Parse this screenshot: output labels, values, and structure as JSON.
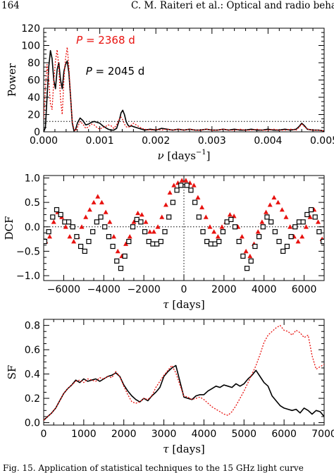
{
  "header": {
    "page_number": "164",
    "running_title": "C. M. Raiteri et al.: Optical and radio beha"
  },
  "caption": {
    "text": "Fig. 15. Application of statistical techniques to the 15 GHz light curve"
  },
  "colors": {
    "black_series": "#000000",
    "red_series": "#e8120f",
    "axis": "#000000"
  },
  "chart_data": [
    {
      "type": "line",
      "ylabel": "Power",
      "xlabel_symbol": "ν",
      "xlabel_unit": "[days",
      "xlabel_exp": "−1",
      "xlabel_close": "]",
      "xlim": [
        0,
        0.005
      ],
      "ylim": [
        0,
        120
      ],
      "xticks": [
        0,
        0.001,
        0.002,
        0.003,
        0.004,
        0.005
      ],
      "xtick_labels": [
        "0.000",
        "0.001",
        "0.002",
        "0.003",
        "0.004",
        "0.005"
      ],
      "yticks": [
        0,
        20,
        40,
        60,
        80,
        100,
        120
      ],
      "ytick_labels": [
        "0",
        "20",
        "40",
        "60",
        "80",
        "100",
        "120"
      ],
      "threshold": 12,
      "annotations": [
        {
          "symbol": "P",
          "text": " = 2368 d",
          "color": "red",
          "at": [
            0.00058,
            102
          ]
        },
        {
          "symbol": "P",
          "text": " = 2045 d",
          "color": "black",
          "at": [
            0.00075,
            66
          ]
        }
      ],
      "series": [
        {
          "style": "solid",
          "color": "black",
          "x": [
            0,
            3e-05,
            6e-05,
            9e-05,
            0.00012,
            0.00015,
            0.00018,
            0.00021,
            0.00024,
            0.00027,
            0.0003,
            0.00033,
            0.00036,
            0.00039,
            0.00042,
            0.00045,
            0.00048,
            0.00051,
            0.00054,
            0.00057,
            0.0006,
            0.00065,
            0.0007,
            0.00075,
            0.0008,
            0.00085,
            0.0009,
            0.00095,
            0.001,
            0.00105,
            0.0011,
            0.00115,
            0.0012,
            0.00125,
            0.0013,
            0.00135,
            0.00138,
            0.00141,
            0.00144,
            0.00147,
            0.0015,
            0.00153,
            0.00156,
            0.0016,
            0.00165,
            0.0017,
            0.00175,
            0.0018,
            0.0019,
            0.002,
            0.0021,
            0.0022,
            0.0023,
            0.0024,
            0.0025,
            0.0026,
            0.0027,
            0.0028,
            0.0029,
            0.003,
            0.0031,
            0.0032,
            0.0033,
            0.0034,
            0.0035,
            0.0036,
            0.0037,
            0.0038,
            0.0039,
            0.004,
            0.0041,
            0.0042,
            0.0043,
            0.0044,
            0.0045,
            0.00455,
            0.0046,
            0.00465,
            0.0047,
            0.0048,
            0.0049,
            0.005
          ],
          "y": [
            0,
            5,
            40,
            75,
            94,
            85,
            60,
            50,
            72,
            80,
            60,
            50,
            70,
            78,
            82,
            68,
            40,
            10,
            1,
            3,
            10,
            16,
            13,
            8,
            9,
            11,
            12,
            11,
            10,
            7,
            5,
            3,
            2,
            2,
            4,
            14,
            22,
            25,
            20,
            12,
            8,
            6,
            7,
            6,
            5,
            4,
            3,
            2,
            3,
            2,
            4,
            3,
            2,
            3,
            2,
            3,
            2,
            2,
            3,
            2,
            2,
            3,
            2,
            3,
            2,
            2,
            3,
            2,
            2,
            3,
            2,
            2,
            3,
            2,
            3,
            6,
            10,
            7,
            3,
            2,
            2,
            1
          ]
        },
        {
          "style": "dotted",
          "color": "red",
          "x": [
            0,
            3e-05,
            6e-05,
            9e-05,
            0.00012,
            0.00015,
            0.00018,
            0.00021,
            0.00024,
            0.00027,
            0.0003,
            0.00033,
            0.00036,
            0.00039,
            0.00042,
            0.00045,
            0.00048,
            0.00051,
            0.00054,
            0.00057,
            0.0006,
            0.00065,
            0.0007,
            0.00075,
            0.0008,
            0.00085,
            0.0009,
            0.00095,
            0.001,
            0.00105,
            0.0011,
            0.00115,
            0.0012,
            0.00125,
            0.0013,
            0.00135,
            0.00138,
            0.00141,
            0.00144,
            0.00147,
            0.0015,
            0.00155,
            0.0016,
            0.00165,
            0.0017,
            0.00175,
            0.0018,
            0.0019,
            0.002,
            0.0021,
            0.0022,
            0.0023,
            0.0024,
            0.0025,
            0.0026,
            0.0027,
            0.0028,
            0.0029,
            0.003,
            0.0031,
            0.0032,
            0.0033,
            0.0034,
            0.0035,
            0.0036,
            0.0037,
            0.0038,
            0.0039,
            0.004,
            0.0041,
            0.0042,
            0.0043,
            0.0044,
            0.0045,
            0.00455,
            0.0046,
            0.00465,
            0.0047,
            0.0048,
            0.0049,
            0.005
          ],
          "y": [
            15,
            50,
            78,
            60,
            32,
            26,
            58,
            82,
            95,
            75,
            38,
            20,
            60,
            85,
            98,
            75,
            40,
            12,
            3,
            1,
            5,
            12,
            9,
            4,
            6,
            9,
            8,
            5,
            3,
            5,
            6,
            8,
            7,
            4,
            8,
            15,
            17,
            14,
            9,
            6,
            5,
            7,
            10,
            8,
            6,
            4,
            3,
            2,
            3,
            2,
            3,
            2,
            3,
            2,
            3,
            2,
            2,
            3,
            2,
            2,
            3,
            2,
            2,
            3,
            2,
            2,
            3,
            2,
            2,
            3,
            2,
            2,
            3,
            2,
            5,
            9,
            6,
            3,
            2,
            2,
            1
          ]
        }
      ]
    },
    {
      "type": "scatter",
      "ylabel": "DCF",
      "xlabel_symbol": "τ",
      "xlabel_unit": "[days]",
      "xlim": [
        -7000,
        7000
      ],
      "ylim": [
        -1.1,
        1.05
      ],
      "xticks": [
        -6000,
        -4000,
        -2000,
        0,
        2000,
        4000,
        6000
      ],
      "xtick_labels": [
        "−6000",
        "−4000",
        "−2000",
        "0",
        "2000",
        "4000",
        "6000"
      ],
      "yticks": [
        -1.0,
        -0.5,
        0.0,
        0.5,
        1.0
      ],
      "ytick_labels": [
        "−1.0",
        "−0.5",
        "0.0",
        "0.5",
        "1.0"
      ],
      "series": [
        {
          "marker": "triangle",
          "color": "red",
          "x": [
            -6900,
            -6700,
            -6500,
            -6300,
            -6100,
            -5900,
            -5700,
            -5500,
            -5300,
            -5100,
            -4900,
            -4700,
            -4500,
            -4300,
            -4100,
            -3900,
            -3700,
            -3500,
            -3300,
            -3100,
            -2900,
            -2700,
            -2500,
            -2300,
            -2100,
            -1900,
            -1700,
            -1500,
            -1300,
            -1100,
            -900,
            -700,
            -500,
            -300,
            -100,
            100,
            300,
            500,
            700,
            900,
            1100,
            1300,
            1500,
            1700,
            1900,
            2100,
            2300,
            2500,
            2700,
            2900,
            3100,
            3300,
            3500,
            3700,
            3900,
            4100,
            4300,
            4500,
            4700,
            4900,
            5100,
            5300,
            5500,
            5700,
            5900,
            6100,
            6300,
            6500,
            6700,
            6900
          ],
          "y": [
            -0.3,
            -0.2,
            0.1,
            0.3,
            0.2,
            0.0,
            -0.2,
            -0.3,
            -0.2,
            0.0,
            0.2,
            0.35,
            0.5,
            0.62,
            0.5,
            0.3,
            0.1,
            -0.2,
            -0.5,
            -0.6,
            -0.35,
            -0.2,
            0.1,
            0.28,
            0.25,
            0.1,
            -0.1,
            -0.1,
            0.0,
            0.2,
            0.45,
            0.7,
            0.85,
            0.9,
            0.95,
            0.95,
            0.9,
            0.85,
            0.6,
            0.4,
            0.2,
            0.0,
            -0.1,
            -0.2,
            0.0,
            0.1,
            0.25,
            0.22,
            0.0,
            -0.2,
            -0.5,
            -0.6,
            -0.35,
            -0.1,
            0.1,
            0.3,
            0.45,
            0.6,
            0.5,
            0.35,
            0.2,
            0.0,
            -0.2,
            -0.3,
            -0.2,
            0.0,
            0.2,
            0.35,
            0.1,
            -0.25
          ]
        },
        {
          "marker": "square",
          "color": "black",
          "x": [
            -6950,
            -6750,
            -6550,
            -6350,
            -6150,
            -5950,
            -5750,
            -5550,
            -5350,
            -5150,
            -4950,
            -4750,
            -4550,
            -4350,
            -4150,
            -3950,
            -3750,
            -3550,
            -3350,
            -3150,
            -2950,
            -2750,
            -2550,
            -2350,
            -2150,
            -1950,
            -1750,
            -1550,
            -1350,
            -1150,
            -950,
            -750,
            -550,
            -350,
            -150,
            150,
            350,
            550,
            750,
            950,
            1150,
            1350,
            1550,
            1750,
            1950,
            2150,
            2350,
            2550,
            2750,
            2950,
            3150,
            3350,
            3550,
            3750,
            3950,
            4150,
            4350,
            4550,
            4750,
            4950,
            5150,
            5350,
            5550,
            5750,
            5950,
            6150,
            6350,
            6550,
            6750,
            6950
          ],
          "y": [
            -0.3,
            -0.1,
            0.2,
            0.35,
            0.25,
            0.1,
            0.1,
            0.0,
            -0.2,
            -0.4,
            -0.5,
            -0.3,
            -0.1,
            0.1,
            0.2,
            0.0,
            -0.2,
            -0.4,
            -0.7,
            -0.85,
            -0.6,
            -0.3,
            0.0,
            0.15,
            0.1,
            -0.1,
            -0.3,
            -0.35,
            -0.35,
            -0.3,
            -0.1,
            0.2,
            0.5,
            0.75,
            0.85,
            0.85,
            0.75,
            0.5,
            0.2,
            -0.1,
            -0.3,
            -0.35,
            -0.35,
            -0.3,
            -0.1,
            0.1,
            0.15,
            0.0,
            -0.3,
            -0.6,
            -0.85,
            -0.7,
            -0.4,
            -0.2,
            0.0,
            0.2,
            0.1,
            -0.1,
            -0.3,
            -0.5,
            -0.4,
            -0.2,
            0.0,
            0.1,
            0.1,
            0.25,
            0.35,
            0.2,
            -0.1,
            -0.3
          ]
        }
      ],
      "reference_lines": {
        "y_zero": true,
        "x_zero": true
      }
    },
    {
      "type": "line",
      "ylabel": "SF",
      "xlabel_symbol": "τ",
      "xlabel_unit": "[days]",
      "xlim": [
        0,
        7000
      ],
      "ylim": [
        -0.02,
        0.85
      ],
      "xticks": [
        0,
        1000,
        2000,
        3000,
        4000,
        5000,
        6000,
        7000
      ],
      "xtick_labels": [
        "0",
        "1000",
        "2000",
        "3000",
        "4000",
        "5000",
        "6000",
        "7000"
      ],
      "yticks": [
        0.0,
        0.2,
        0.4,
        0.6,
        0.8
      ],
      "ytick_labels": [
        "0.0",
        "0.2",
        "0.4",
        "0.6",
        "0.8"
      ],
      "series": [
        {
          "style": "solid",
          "color": "black",
          "x": [
            0,
            100,
            200,
            300,
            400,
            500,
            600,
            700,
            800,
            900,
            1000,
            1100,
            1200,
            1300,
            1400,
            1500,
            1600,
            1700,
            1800,
            1900,
            2000,
            2100,
            2200,
            2300,
            2400,
            2500,
            2600,
            2700,
            2800,
            2900,
            3000,
            3100,
            3200,
            3300,
            3400,
            3500,
            3600,
            3700,
            3800,
            3900,
            4000,
            4100,
            4200,
            4300,
            4400,
            4500,
            4600,
            4700,
            4800,
            4900,
            5000,
            5100,
            5200,
            5300,
            5400,
            5500,
            5600,
            5700,
            5800,
            5900,
            6000,
            6100,
            6200,
            6300,
            6400,
            6500,
            6600,
            6700,
            6800,
            6900,
            7000
          ],
          "y": [
            0.02,
            0.05,
            0.08,
            0.12,
            0.18,
            0.24,
            0.28,
            0.31,
            0.35,
            0.33,
            0.36,
            0.34,
            0.35,
            0.36,
            0.34,
            0.36,
            0.38,
            0.39,
            0.41,
            0.38,
            0.31,
            0.26,
            0.22,
            0.19,
            0.17,
            0.2,
            0.18,
            0.22,
            0.25,
            0.29,
            0.38,
            0.42,
            0.45,
            0.47,
            0.34,
            0.21,
            0.2,
            0.19,
            0.22,
            0.23,
            0.23,
            0.26,
            0.28,
            0.3,
            0.29,
            0.31,
            0.3,
            0.29,
            0.32,
            0.3,
            0.32,
            0.36,
            0.39,
            0.43,
            0.38,
            0.33,
            0.3,
            0.22,
            0.18,
            0.14,
            0.12,
            0.11,
            0.1,
            0.11,
            0.08,
            0.12,
            0.1,
            0.07,
            0.1,
            0.09,
            0.05
          ]
        },
        {
          "style": "dotted",
          "color": "red",
          "x": [
            0,
            100,
            200,
            300,
            400,
            500,
            600,
            700,
            800,
            900,
            1000,
            1100,
            1200,
            1300,
            1400,
            1500,
            1600,
            1700,
            1800,
            1900,
            2000,
            2100,
            2200,
            2300,
            2400,
            2500,
            2600,
            2700,
            2800,
            2900,
            3000,
            3100,
            3200,
            3300,
            3400,
            3500,
            3600,
            3700,
            3800,
            3900,
            4000,
            4100,
            4200,
            4300,
            4400,
            4500,
            4600,
            4700,
            4800,
            4900,
            5000,
            5100,
            5200,
            5300,
            5400,
            5500,
            5600,
            5700,
            5800,
            5900,
            6000,
            6100,
            6200,
            6300,
            6400,
            6500,
            6600,
            6700,
            6800,
            6900,
            7000
          ],
          "y": [
            0.02,
            0.05,
            0.08,
            0.12,
            0.18,
            0.24,
            0.28,
            0.31,
            0.34,
            0.35,
            0.33,
            0.36,
            0.35,
            0.34,
            0.37,
            0.36,
            0.38,
            0.37,
            0.42,
            0.38,
            0.3,
            0.23,
            0.17,
            0.16,
            0.17,
            0.2,
            0.19,
            0.22,
            0.29,
            0.34,
            0.39,
            0.43,
            0.47,
            0.41,
            0.31,
            0.22,
            0.21,
            0.19,
            0.2,
            0.21,
            0.19,
            0.16,
            0.13,
            0.11,
            0.09,
            0.07,
            0.06,
            0.09,
            0.14,
            0.2,
            0.26,
            0.33,
            0.4,
            0.47,
            0.56,
            0.66,
            0.72,
            0.75,
            0.78,
            0.8,
            0.76,
            0.75,
            0.72,
            0.76,
            0.74,
            0.7,
            0.72,
            0.55,
            0.44,
            0.46,
            0.48
          ]
        }
      ]
    }
  ]
}
